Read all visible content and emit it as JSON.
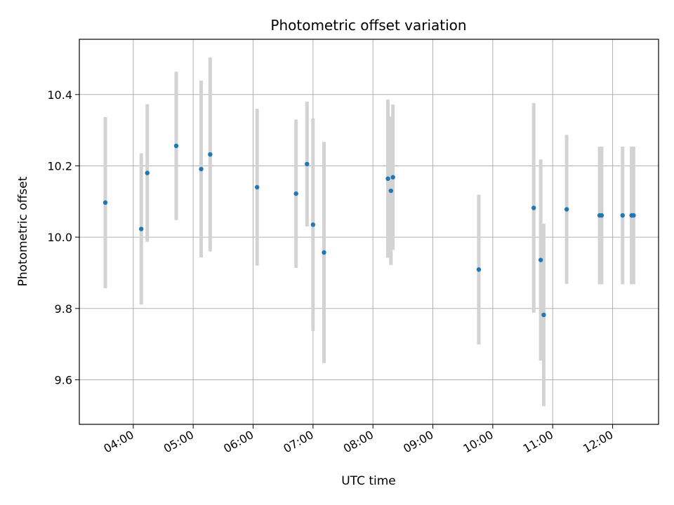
{
  "chart_data": {
    "type": "scatter",
    "title": "Photometric offset variation",
    "xlabel": "UTC time",
    "ylabel": "Photometric offset",
    "xlim": [
      "03:06",
      "12:46"
    ],
    "ylim": [
      9.475,
      10.555
    ],
    "x_ticks": [
      "04:00",
      "05:00",
      "06:00",
      "07:00",
      "08:00",
      "09:00",
      "10:00",
      "11:00",
      "12:00"
    ],
    "y_ticks": [
      9.6,
      9.8,
      10.0,
      10.2,
      10.4
    ],
    "y_tick_labels": [
      "9.6",
      "9.8",
      "10.0",
      "10.2",
      "10.4"
    ],
    "grid": true,
    "marker_color": "#1f77b4",
    "errorbar_color": "#d3d3d3",
    "points": [
      {
        "x": "03:32",
        "y": 10.097,
        "err": 0.24
      },
      {
        "x": "04:08",
        "y": 10.023,
        "err": 0.212
      },
      {
        "x": "04:14",
        "y": 10.18,
        "err": 0.193
      },
      {
        "x": "04:43",
        "y": 10.256,
        "err": 0.208
      },
      {
        "x": "05:08",
        "y": 10.191,
        "err": 0.248
      },
      {
        "x": "05:17",
        "y": 10.232,
        "err": 0.272
      },
      {
        "x": "06:04",
        "y": 10.14,
        "err": 0.22
      },
      {
        "x": "06:43",
        "y": 10.122,
        "err": 0.208
      },
      {
        "x": "06:54",
        "y": 10.205,
        "err": 0.175
      },
      {
        "x": "07:00",
        "y": 10.035,
        "err": 0.298
      },
      {
        "x": "07:11",
        "y": 9.957,
        "err": 0.31
      },
      {
        "x": "08:15",
        "y": 10.164,
        "err": 0.222
      },
      {
        "x": "08:18",
        "y": 10.13,
        "err": 0.208
      },
      {
        "x": "08:20",
        "y": 10.168,
        "err": 0.204
      },
      {
        "x": "09:46",
        "y": 9.909,
        "err": 0.21
      },
      {
        "x": "10:41",
        "y": 10.082,
        "err": 0.294
      },
      {
        "x": "10:48",
        "y": 9.936,
        "err": 0.282
      },
      {
        "x": "10:51",
        "y": 9.782,
        "err": 0.256
      },
      {
        "x": "11:14",
        "y": 10.078,
        "err": 0.209
      },
      {
        "x": "11:47",
        "y": 10.061,
        "err": 0.193
      },
      {
        "x": "11:49",
        "y": 10.061,
        "err": 0.193
      },
      {
        "x": "12:10",
        "y": 10.061,
        "err": 0.193
      },
      {
        "x": "12:19",
        "y": 10.061,
        "err": 0.193
      },
      {
        "x": "12:21",
        "y": 10.061,
        "err": 0.193
      }
    ]
  }
}
